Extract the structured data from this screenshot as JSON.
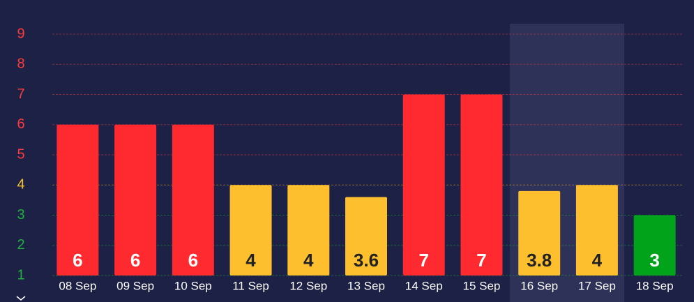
{
  "chart_data": {
    "type": "bar",
    "categories": [
      "08 Sep",
      "09 Sep",
      "10 Sep",
      "11 Sep",
      "12 Sep",
      "13 Sep",
      "14 Sep",
      "15 Sep",
      "16 Sep",
      "17 Sep",
      "18 Sep"
    ],
    "values": [
      6,
      6,
      6,
      4,
      4,
      3.6,
      7,
      7,
      3.8,
      4,
      3
    ],
    "colors": [
      "#ff2a2f",
      "#ff2a2f",
      "#ff2a2f",
      "#fdbf2d",
      "#fdbf2d",
      "#fdbf2d",
      "#ff2a2f",
      "#ff2a2f",
      "#fdbf2d",
      "#fdbf2d",
      "#00a31a"
    ],
    "ylim": [
      1,
      9.5
    ],
    "yticks": [
      1,
      2,
      3,
      4,
      5,
      6,
      7,
      8,
      9
    ],
    "ytick_colors": [
      "#1fb33a",
      "#1fb33a",
      "#1fb33a",
      "#f5c02f",
      "#ff3b3b",
      "#ff3b3b",
      "#ff3b3b",
      "#ff3b3b",
      "#ff3b3b"
    ],
    "grid": true
  }
}
